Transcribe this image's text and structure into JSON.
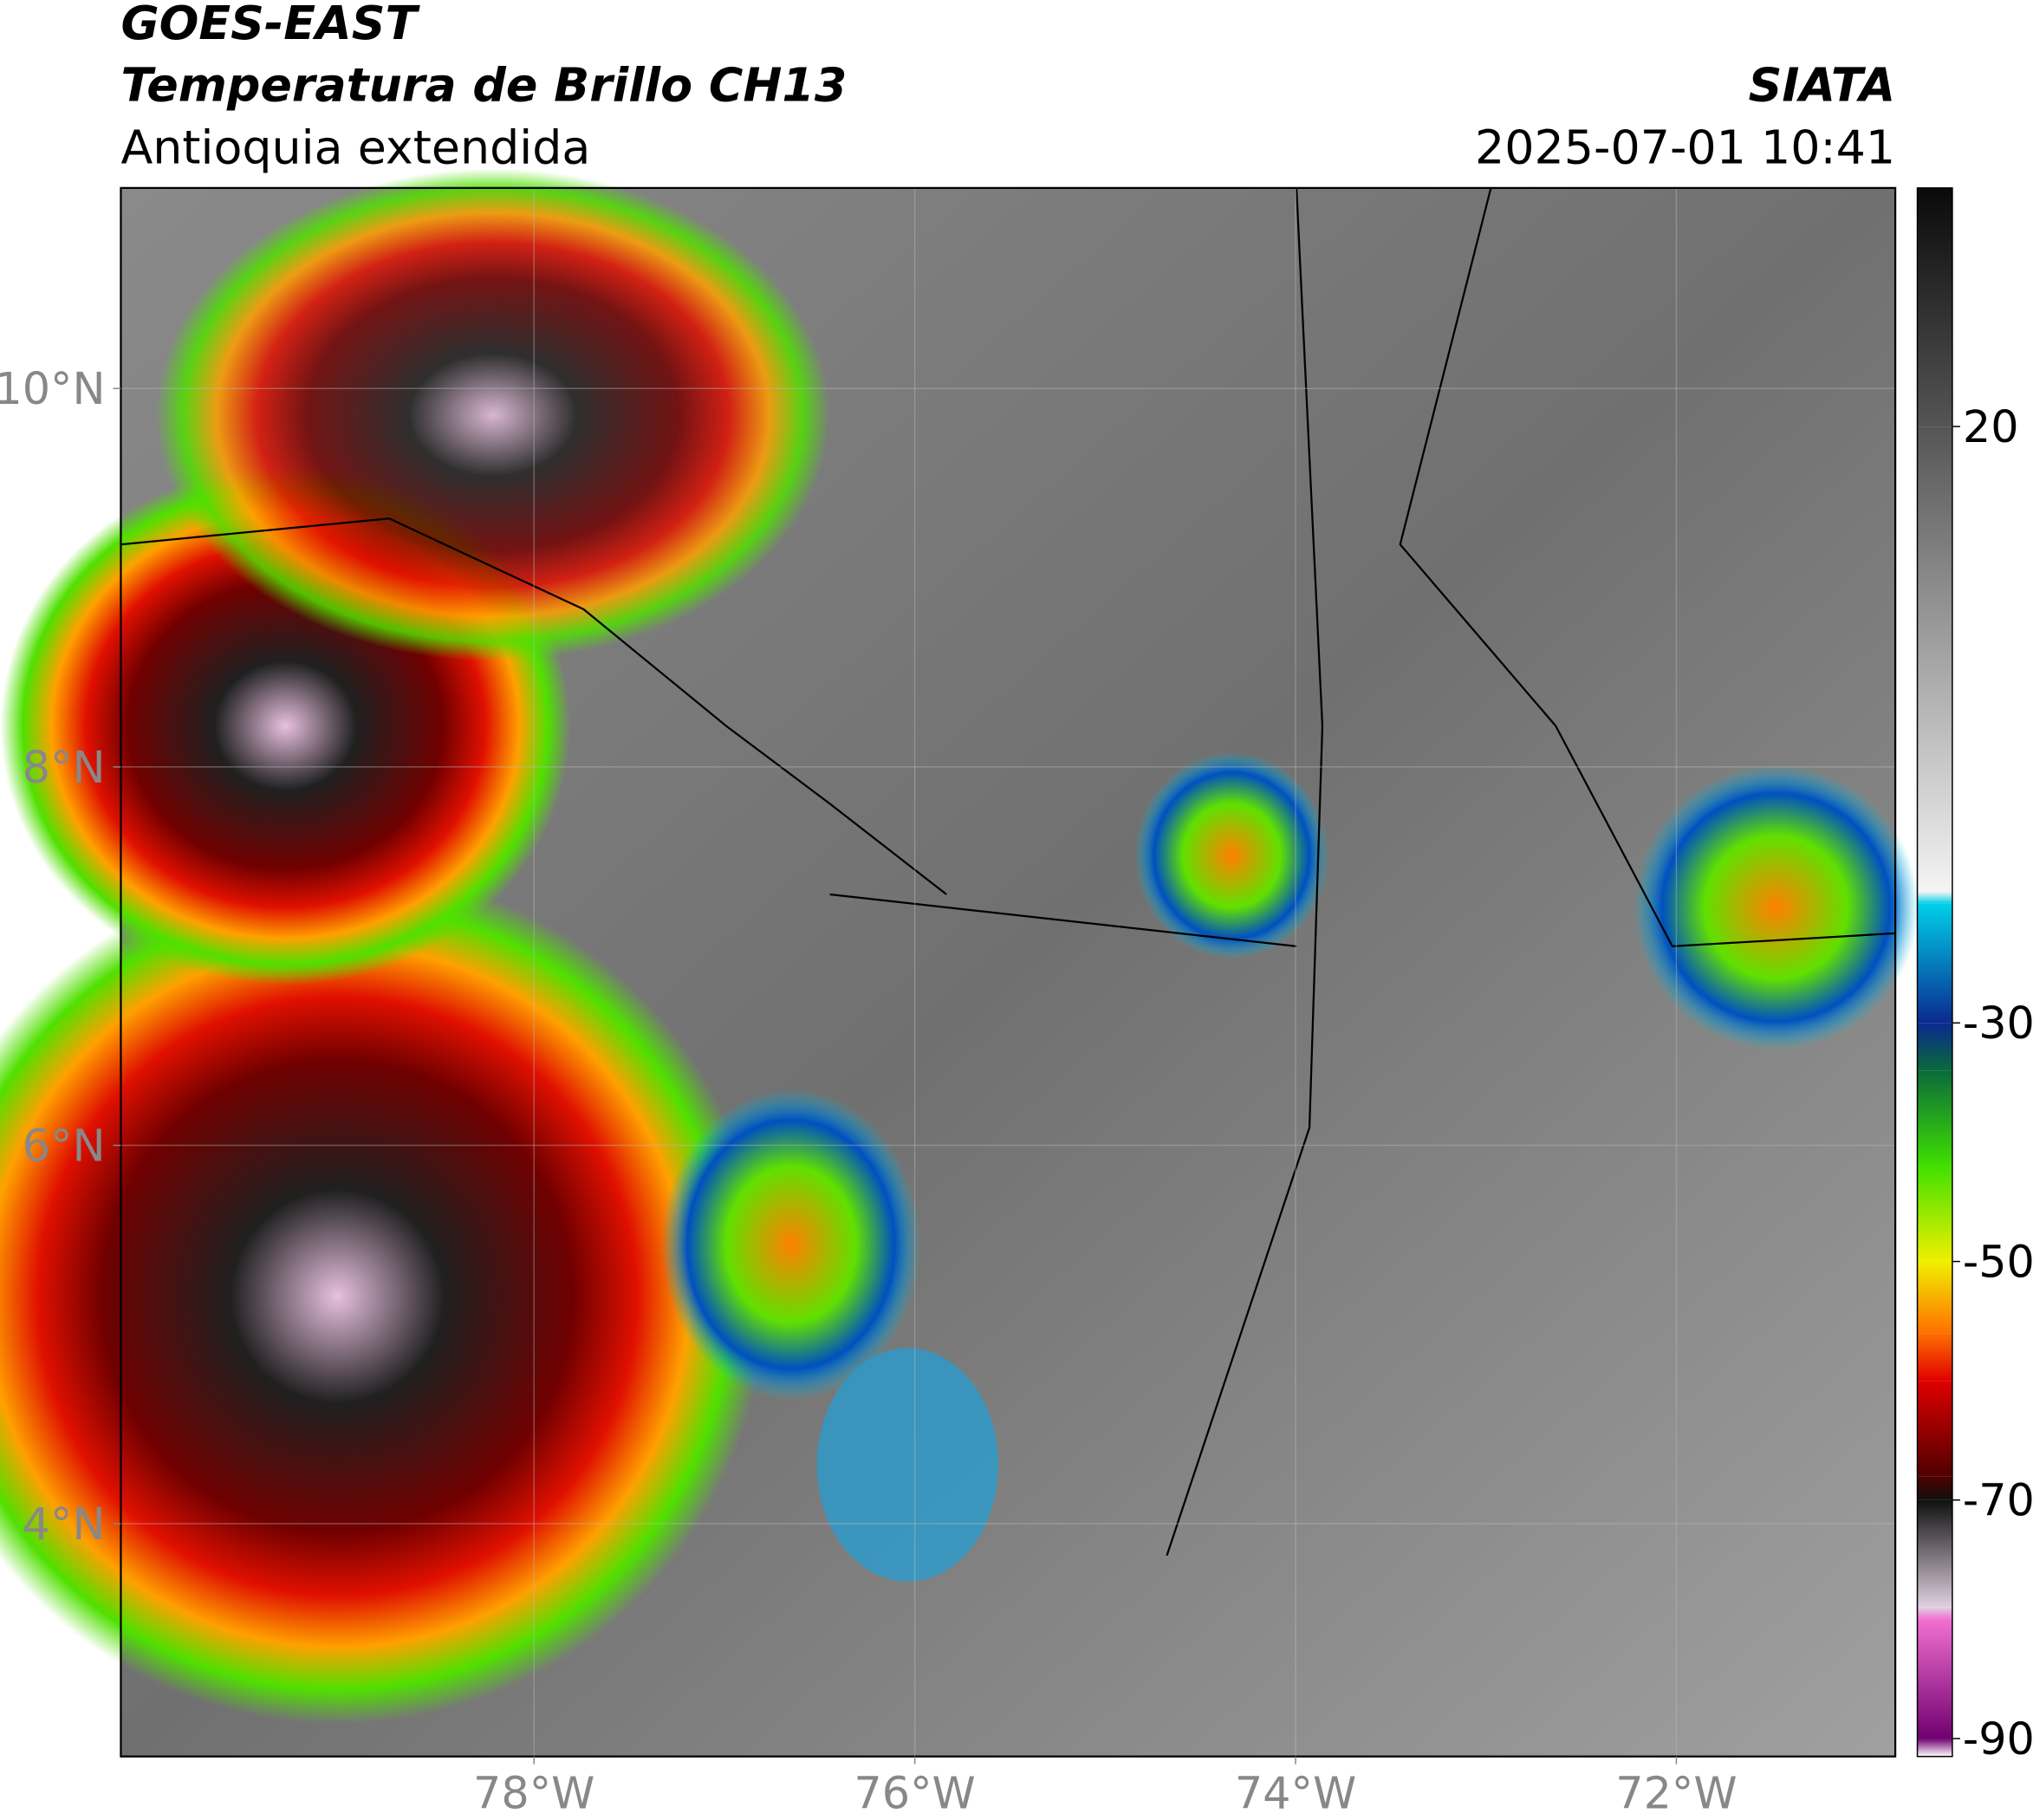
{
  "header": {
    "line1": "GOES-EAST",
    "line2": "Temperatura de Brillo CH13",
    "line3": "Antioquia extendida",
    "source": "SIATA",
    "datetime": "2025-07-01 10:41"
  },
  "map": {
    "xlim": [
      -80.17,
      -70.85
    ],
    "ylim": [
      2.77,
      11.06
    ],
    "xticks": [
      {
        "value": -78,
        "label": "78°W"
      },
      {
        "value": -76,
        "label": "76°W"
      },
      {
        "value": -74,
        "label": "74°W"
      },
      {
        "value": -72,
        "label": "72°W"
      }
    ],
    "yticks": [
      {
        "value": 4,
        "label": "4°N"
      },
      {
        "value": 6,
        "label": "6°N"
      },
      {
        "value": 8,
        "label": "8°N"
      },
      {
        "value": 10,
        "label": "10°N"
      }
    ],
    "grid": true
  },
  "colorbar": {
    "lim": [
      -91.5,
      40
    ],
    "ticks": [
      -90,
      -70,
      -50,
      -30,
      20
    ],
    "stops": [
      {
        "value": 40,
        "color": "#0a0a0a"
      },
      {
        "value": 20,
        "color": "#555555"
      },
      {
        "value": -19,
        "color": "#f4f4f4"
      },
      {
        "value": -20,
        "color": "#00d0e8"
      },
      {
        "value": -30,
        "color": "#0a2a90"
      },
      {
        "value": -34,
        "color": "#0a6a3a"
      },
      {
        "value": -42,
        "color": "#40e000"
      },
      {
        "value": -50,
        "color": "#f0f000"
      },
      {
        "value": -56,
        "color": "#ff7000"
      },
      {
        "value": -60,
        "color": "#e00000"
      },
      {
        "value": -68,
        "color": "#500000"
      },
      {
        "value": -70,
        "color": "#101010"
      },
      {
        "value": -79,
        "color": "#e0d0e0"
      },
      {
        "value": -80,
        "color": "#f070d0"
      },
      {
        "value": -90,
        "color": "#700070"
      },
      {
        "value": -91.5,
        "color": "#ffffff"
      }
    ]
  }
}
